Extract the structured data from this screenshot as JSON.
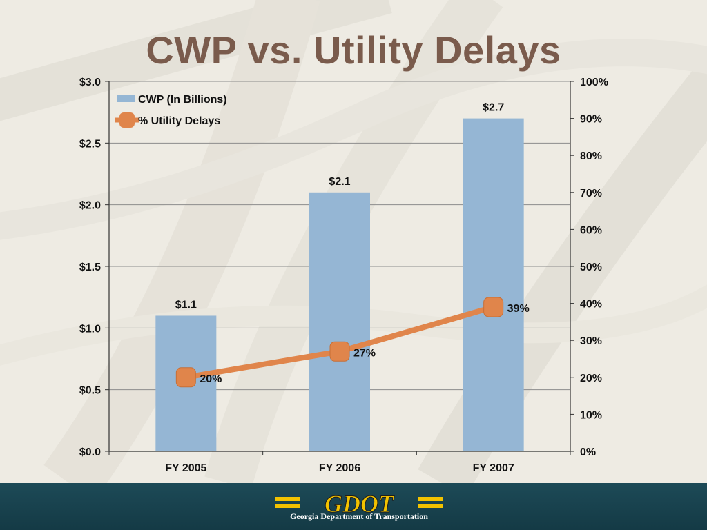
{
  "title": "CWP vs. Utility Delays",
  "footer": {
    "logo_text": "GDOT",
    "org_name": "Georgia Department of Transportation"
  },
  "colors": {
    "title": "#7a5b4c",
    "bar": "#95b6d4",
    "line": "#e0854b",
    "footer": "#1d4a57",
    "logo": "#f2c200"
  },
  "chart_data": {
    "type": "bar",
    "categories": [
      "FY 2005",
      "FY 2006",
      "FY 2007"
    ],
    "series": [
      {
        "name": "CWP (In Billions)",
        "type": "bar",
        "axis": "left",
        "values": [
          1.1,
          2.1,
          2.7
        ],
        "labels": [
          "$1.1",
          "$2.1",
          "$2.7"
        ]
      },
      {
        "name": "% Utility Delays",
        "type": "line",
        "axis": "right",
        "values": [
          20,
          27,
          39
        ],
        "labels": [
          "20%",
          "27%",
          "39%"
        ]
      }
    ],
    "left_axis": {
      "ylim": [
        0,
        3
      ],
      "ticks": [
        0,
        0.5,
        1,
        1.5,
        2,
        2.5,
        3
      ],
      "tick_labels": [
        "$0.0",
        "$0.5",
        "$1.0",
        "$1.5",
        "$2.0",
        "$2.5",
        "$3.0"
      ]
    },
    "right_axis": {
      "ylim": [
        0,
        100
      ],
      "ticks": [
        0,
        10,
        20,
        30,
        40,
        50,
        60,
        70,
        80,
        90,
        100
      ],
      "tick_labels": [
        "0%",
        "10%",
        "20%",
        "30%",
        "40%",
        "50%",
        "60%",
        "70%",
        "80%",
        "90%",
        "100%"
      ]
    },
    "grid": true,
    "legend": "top-left"
  }
}
